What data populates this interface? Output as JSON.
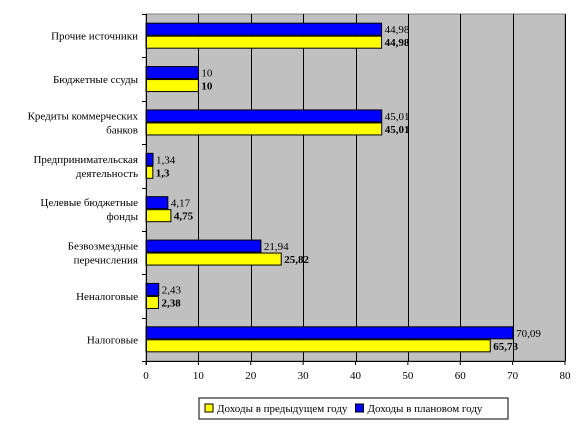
{
  "chart_data": {
    "type": "bar",
    "orientation": "horizontal",
    "categories": [
      [
        "Прочие источники"
      ],
      [
        "Бюджетные ссуды"
      ],
      [
        "Кредиты коммерческих",
        "банков"
      ],
      [
        "Предпринимательская",
        "деятельность"
      ],
      [
        "Целевые бюджетные",
        "фонды"
      ],
      [
        "Безвозмездные",
        "перечисления"
      ],
      [
        "Неналоговые"
      ],
      [
        "Налоговые"
      ]
    ],
    "series": [
      {
        "name": "Доходы в плановом году",
        "color": "#0000ff",
        "values": [
          44.98,
          10,
          45.01,
          1.34,
          4.17,
          21.94,
          2.43,
          70.09
        ],
        "labels": [
          "44,98",
          "10",
          "45,01",
          "1,34",
          "4,17",
          "21,94",
          "2,43",
          "70,09"
        ]
      },
      {
        "name": "Доходы в предыдущем году",
        "color": "#ffff00",
        "values": [
          44.98,
          10,
          45.01,
          1.3,
          4.75,
          25.82,
          2.38,
          65.73
        ],
        "labels": [
          "44,98",
          "10",
          "45,01",
          "1,3",
          "4,75",
          "25,82",
          "2,38",
          "65,73"
        ]
      }
    ],
    "x_ticks": [
      "0",
      "10",
      "20",
      "30",
      "40",
      "50",
      "60",
      "70",
      "80"
    ],
    "xlim": [
      0,
      80
    ],
    "grid": true,
    "plot_background": "#c0c0c0",
    "legend": {
      "position": "bottom",
      "order": [
        "Доходы в предыдущем году",
        "Доходы в плановом году"
      ]
    }
  }
}
